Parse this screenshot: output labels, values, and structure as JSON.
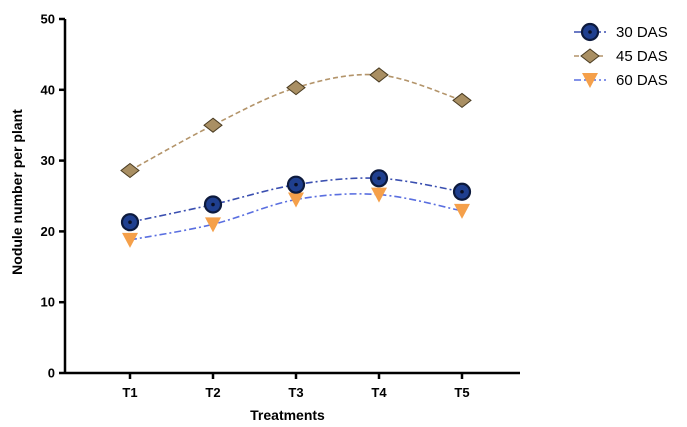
{
  "chart_data": {
    "type": "line",
    "categories": [
      "T1",
      "T2",
      "T3",
      "T4",
      "T5"
    ],
    "xlabel": "Treatments",
    "ylabel": "Nodule number per plant",
    "ylim": [
      0,
      50
    ],
    "yticks": [
      0,
      10,
      20,
      30,
      40,
      50
    ],
    "grid": false,
    "legend_position": "top-right",
    "series": [
      {
        "name": "30 DAS",
        "values": [
          21.3,
          23.8,
          26.6,
          27.5,
          25.6
        ],
        "color": "#1f3f8f",
        "line_color": "#3a4fb0",
        "marker": "circle",
        "line_style": "dash-dot"
      },
      {
        "name": "45 DAS",
        "values": [
          28.6,
          35.0,
          40.3,
          42.1,
          38.5
        ],
        "color": "#a98f63",
        "line_color": "#b3946a",
        "marker": "diamond",
        "line_style": "dashed"
      },
      {
        "name": "60 DAS",
        "values": [
          18.8,
          21.0,
          24.5,
          25.2,
          22.9
        ],
        "color": "#f5a04a",
        "line_color": "#5a6fe0",
        "marker": "triangle-down",
        "line_style": "dash-dot"
      }
    ]
  }
}
